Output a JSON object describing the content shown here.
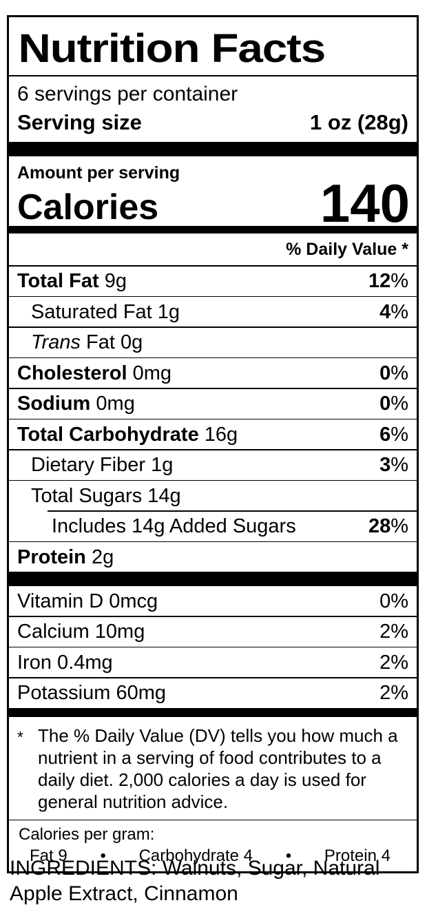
{
  "label": {
    "title": "Nutrition Facts",
    "servings_per_container": "6 servings per container",
    "serving_size_label": "Serving size",
    "serving_size_value": "1 oz (28g)",
    "amount_per_serving": "Amount per serving",
    "calories_label": "Calories",
    "calories_value": "140",
    "daily_value_header": "% Daily Value *"
  },
  "nutrients": [
    {
      "label": "Total Fat",
      "amount": "9g",
      "dv": "12",
      "unit": "%"
    },
    {
      "label": "Saturated Fat",
      "amount": "1g",
      "dv": "4",
      "unit": "%"
    },
    {
      "label_italic": "Trans",
      "label": "Fat",
      "amount": "0g",
      "dv": "",
      "unit": ""
    },
    {
      "label": "Cholesterol",
      "amount": "0mg",
      "dv": "0",
      "unit": "%"
    },
    {
      "label": "Sodium",
      "amount": "0mg",
      "dv": "0",
      "unit": "%"
    },
    {
      "label": "Total Carbohydrate",
      "amount": "16g",
      "dv": "6",
      "unit": "%"
    },
    {
      "label": "Dietary Fiber",
      "amount": "1g",
      "dv": "3",
      "unit": "%"
    },
    {
      "label": "Total Sugars",
      "amount": "14g",
      "dv": "",
      "unit": ""
    },
    {
      "label": "Includes 14g Added Sugars",
      "amount": "",
      "dv": "28",
      "unit": "%"
    },
    {
      "label": "Protein",
      "amount": "2g",
      "dv": "",
      "unit": ""
    }
  ],
  "vitamins": [
    {
      "label": "Vitamin D 0mcg",
      "dv": "0",
      "unit": "%"
    },
    {
      "label": "Calcium 10mg",
      "dv": "2",
      "unit": "%"
    },
    {
      "label": "Iron 0.4mg",
      "dv": "2",
      "unit": "%"
    },
    {
      "label": "Potassium 60mg",
      "dv": "2",
      "unit": "%"
    }
  ],
  "footnote": {
    "marker": "*",
    "text": "The % Daily Value (DV) tells you how much a nutrient in a serving of food contributes to a daily diet. 2,000 calories a day is used for general nutrition advice."
  },
  "calories_per_gram": {
    "heading": "Calories per gram:",
    "fat": "Fat 9",
    "carbohydrate": "Carbohydrate 4",
    "protein": "Protein 4",
    "bullet": "•"
  },
  "ingredients": "INGREDIENTS: Walnuts, Sugar, Natural Apple Extract, Cinnamon"
}
